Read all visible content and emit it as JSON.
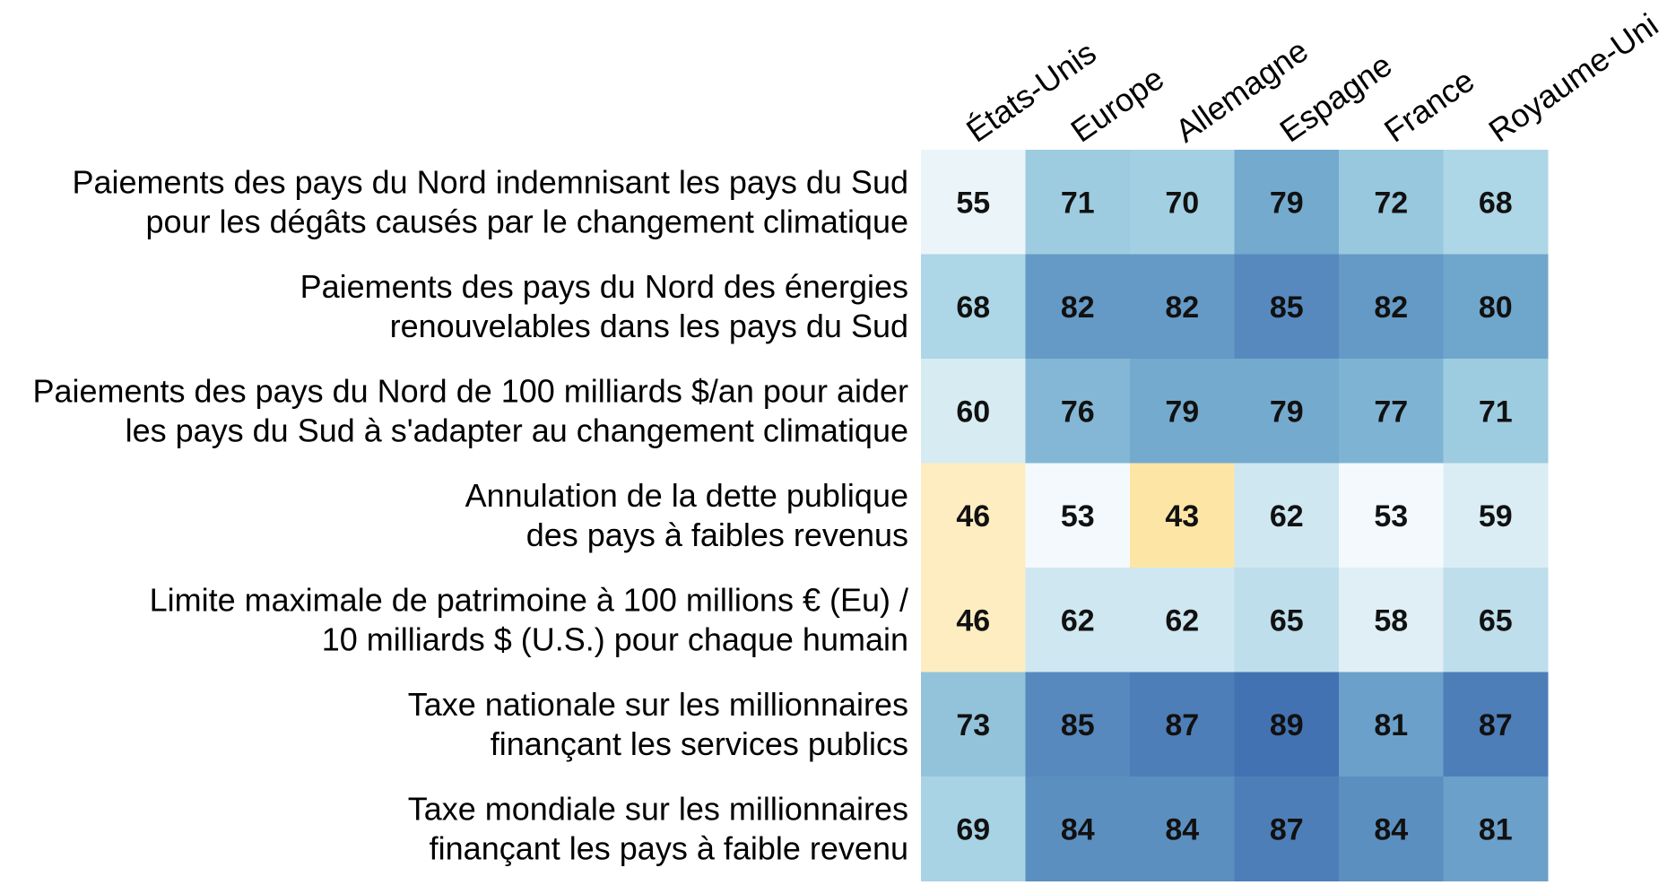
{
  "chart_data": {
    "type": "heatmap",
    "columns": [
      "États-Unis",
      "Europe",
      "Allemagne",
      "Espagne",
      "France",
      "Royaume-Uni"
    ],
    "rows": [
      [
        "Paiements des pays du Nord indemnisant les pays du Sud",
        "pour les dégâts causés par le changement climatique"
      ],
      [
        "Paiements des pays du Nord des énergies",
        "renouvelables dans les pays du Sud"
      ],
      [
        "Paiements des pays du Nord de 100 milliards $/an pour aider",
        "les pays du Sud à s'adapter au changement climatique"
      ],
      [
        "Annulation de la dette publique",
        "des pays à faibles revenus"
      ],
      [
        "Limite maximale de patrimoine à 100 millions € (Eu) /",
        "10 milliards $ (U.S.)  pour chaque humain"
      ],
      [
        "Taxe nationale sur les millionnaires",
        "finançant les services publics"
      ],
      [
        "Taxe mondiale sur les millionnaires",
        "finançant les pays à faible revenu"
      ]
    ],
    "values": [
      [
        55,
        71,
        70,
        79,
        72,
        68
      ],
      [
        68,
        82,
        82,
        85,
        82,
        80
      ],
      [
        60,
        76,
        79,
        79,
        77,
        71
      ],
      [
        46,
        53,
        43,
        62,
        53,
        59
      ],
      [
        46,
        62,
        62,
        65,
        58,
        65
      ],
      [
        73,
        85,
        87,
        89,
        81,
        87
      ],
      [
        69,
        84,
        84,
        87,
        84,
        81
      ]
    ],
    "color_scale": {
      "stops": [
        {
          "value": 43,
          "color": "#fde6a5"
        },
        {
          "value": 50,
          "color": "#fdf6e6"
        },
        {
          "value": 53,
          "color": "#f3f9fc"
        },
        {
          "value": 62,
          "color": "#cfe7f0"
        },
        {
          "value": 70,
          "color": "#a2d0e2"
        },
        {
          "value": 80,
          "color": "#6fa6cc"
        },
        {
          "value": 89,
          "color": "#4372b2"
        }
      ]
    }
  }
}
